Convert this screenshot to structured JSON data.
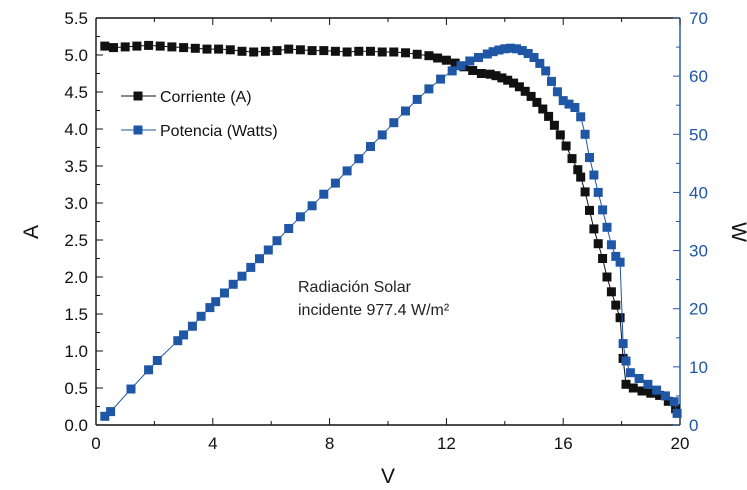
{
  "chart_data": {
    "type": "scatter",
    "xlabel": "V",
    "ylabel_left": "A",
    "ylabel_right": "W",
    "xlim": [
      0,
      20
    ],
    "ylim_left": [
      0,
      5.5
    ],
    "ylim_right": [
      0,
      70
    ],
    "x_ticks": [
      "0",
      "4",
      "8",
      "12",
      "16",
      "20"
    ],
    "y_left_ticks": [
      "0.0",
      "0.5",
      "1.0",
      "1.5",
      "2.0",
      "2.5",
      "3.0",
      "3.5",
      "4.0",
      "4.5",
      "5.0",
      "5.5"
    ],
    "y_right_ticks": [
      "0",
      "10",
      "20",
      "30",
      "40",
      "50",
      "60",
      "70"
    ],
    "grid": false,
    "legend_position": "top-left",
    "annotation": [
      "Radiación Solar",
      "incidente 977.4 W/m²"
    ],
    "colors": {
      "corriente": "#111111",
      "potencia": "#1f56a6",
      "right_axis": "#1f56a6"
    },
    "series": [
      {
        "name": "Corriente (A)",
        "axis": "left",
        "points": [
          [
            0.3,
            5.12
          ],
          [
            0.6,
            5.1
          ],
          [
            1.0,
            5.11
          ],
          [
            1.4,
            5.12
          ],
          [
            1.8,
            5.13
          ],
          [
            2.2,
            5.12
          ],
          [
            2.6,
            5.11
          ],
          [
            3.0,
            5.1
          ],
          [
            3.4,
            5.09
          ],
          [
            3.8,
            5.08
          ],
          [
            4.2,
            5.08
          ],
          [
            4.6,
            5.07
          ],
          [
            5.0,
            5.05
          ],
          [
            5.4,
            5.04
          ],
          [
            5.8,
            5.05
          ],
          [
            6.2,
            5.06
          ],
          [
            6.6,
            5.08
          ],
          [
            7.0,
            5.07
          ],
          [
            7.4,
            5.06
          ],
          [
            7.8,
            5.06
          ],
          [
            8.2,
            5.05
          ],
          [
            8.6,
            5.04
          ],
          [
            9.0,
            5.05
          ],
          [
            9.4,
            5.05
          ],
          [
            9.8,
            5.04
          ],
          [
            10.2,
            5.04
          ],
          [
            10.6,
            5.03
          ],
          [
            11.0,
            5.01
          ],
          [
            11.4,
            4.99
          ],
          [
            11.7,
            4.96
          ],
          [
            12.0,
            4.93
          ],
          [
            12.3,
            4.89
          ],
          [
            12.6,
            4.84
          ],
          [
            12.9,
            4.79
          ],
          [
            13.2,
            4.75
          ],
          [
            13.5,
            4.74
          ],
          [
            13.7,
            4.72
          ],
          [
            13.9,
            4.69
          ],
          [
            14.1,
            4.66
          ],
          [
            14.3,
            4.62
          ],
          [
            14.5,
            4.57
          ],
          [
            14.7,
            4.51
          ],
          [
            14.9,
            4.44
          ],
          [
            15.1,
            4.36
          ],
          [
            15.3,
            4.27
          ],
          [
            15.5,
            4.17
          ],
          [
            15.7,
            4.05
          ],
          [
            15.9,
            3.92
          ],
          [
            16.1,
            3.77
          ],
          [
            16.3,
            3.6
          ],
          [
            16.5,
            3.45
          ],
          [
            16.6,
            3.35
          ],
          [
            16.75,
            3.15
          ],
          [
            16.9,
            2.9
          ],
          [
            17.05,
            2.65
          ],
          [
            17.2,
            2.45
          ],
          [
            17.35,
            2.25
          ],
          [
            17.5,
            2.0
          ],
          [
            17.65,
            1.8
          ],
          [
            17.8,
            1.62
          ],
          [
            17.95,
            1.45
          ],
          [
            18.05,
            0.9
          ],
          [
            18.15,
            0.55
          ],
          [
            18.4,
            0.5
          ],
          [
            18.7,
            0.46
          ],
          [
            19.0,
            0.43
          ],
          [
            19.3,
            0.4
          ],
          [
            19.6,
            0.32
          ],
          [
            19.85,
            0.22
          ]
        ]
      },
      {
        "name": "Potencia (Watts)",
        "axis": "right",
        "points": [
          [
            0.3,
            1.5
          ],
          [
            0.5,
            2.3
          ],
          [
            1.2,
            6.2
          ],
          [
            1.8,
            9.5
          ],
          [
            2.1,
            11.1
          ],
          [
            2.8,
            14.5
          ],
          [
            3.0,
            15.5
          ],
          [
            3.3,
            17.0
          ],
          [
            3.6,
            18.7
          ],
          [
            3.9,
            20.2
          ],
          [
            4.1,
            21.2
          ],
          [
            4.4,
            22.7
          ],
          [
            4.7,
            24.2
          ],
          [
            5.0,
            25.6
          ],
          [
            5.3,
            27.1
          ],
          [
            5.6,
            28.6
          ],
          [
            5.9,
            30.1
          ],
          [
            6.2,
            31.7
          ],
          [
            6.6,
            33.8
          ],
          [
            7.0,
            35.8
          ],
          [
            7.4,
            37.7
          ],
          [
            7.8,
            39.7
          ],
          [
            8.2,
            41.6
          ],
          [
            8.6,
            43.7
          ],
          [
            9.0,
            45.8
          ],
          [
            9.4,
            47.9
          ],
          [
            9.8,
            49.9
          ],
          [
            10.2,
            52.0
          ],
          [
            10.6,
            54.0
          ],
          [
            11.0,
            56.0
          ],
          [
            11.4,
            57.8
          ],
          [
            11.8,
            59.5
          ],
          [
            12.2,
            60.9
          ],
          [
            12.5,
            61.8
          ],
          [
            12.8,
            62.6
          ],
          [
            13.1,
            63.2
          ],
          [
            13.4,
            63.8
          ],
          [
            13.6,
            64.2
          ],
          [
            13.8,
            64.5
          ],
          [
            14.0,
            64.7
          ],
          [
            14.2,
            64.8
          ],
          [
            14.4,
            64.7
          ],
          [
            14.6,
            64.4
          ],
          [
            14.8,
            63.9
          ],
          [
            15.0,
            63.2
          ],
          [
            15.2,
            62.2
          ],
          [
            15.4,
            60.9
          ],
          [
            15.6,
            59.1
          ],
          [
            15.8,
            57.3
          ],
          [
            16.0,
            55.8
          ],
          [
            16.2,
            55.2
          ],
          [
            16.4,
            54.6
          ],
          [
            16.6,
            53.0
          ],
          [
            16.75,
            50.0
          ],
          [
            16.9,
            46.0
          ],
          [
            17.05,
            43.0
          ],
          [
            17.2,
            40.0
          ],
          [
            17.35,
            37.0
          ],
          [
            17.5,
            34.0
          ],
          [
            17.65,
            31.0
          ],
          [
            17.8,
            29.0
          ],
          [
            17.95,
            28.0
          ],
          [
            18.05,
            14.0
          ],
          [
            18.15,
            11.0
          ],
          [
            18.3,
            9.0
          ],
          [
            18.6,
            8.0
          ],
          [
            18.9,
            7.0
          ],
          [
            19.2,
            6.0
          ],
          [
            19.5,
            5.0
          ],
          [
            19.8,
            4.0
          ],
          [
            19.9,
            2.0
          ]
        ]
      }
    ]
  }
}
